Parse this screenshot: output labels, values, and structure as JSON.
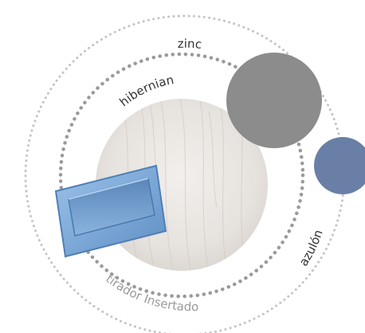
{
  "labels": {
    "zinc": "zinc",
    "hibernian": "hibernian",
    "azulon": "azulón",
    "tirador": "tirador Insertado"
  },
  "colors": {
    "zinc": "#8c8c8c",
    "azulon": "#6a7fa6",
    "hibernian": "#e8e4e0",
    "handle": "#7aa6d6",
    "dots_dark": "#9a9a9a",
    "dots_light": "#c4c4c4",
    "text": "#333333",
    "text_light": "#9a9a9a"
  },
  "items": [
    {
      "name": "zinc",
      "type": "color-swatch"
    },
    {
      "name": "hibernian",
      "type": "wood-texture-swatch"
    },
    {
      "name": "azulón",
      "type": "color-swatch"
    },
    {
      "name": "tirador Insertado",
      "type": "handle"
    }
  ]
}
